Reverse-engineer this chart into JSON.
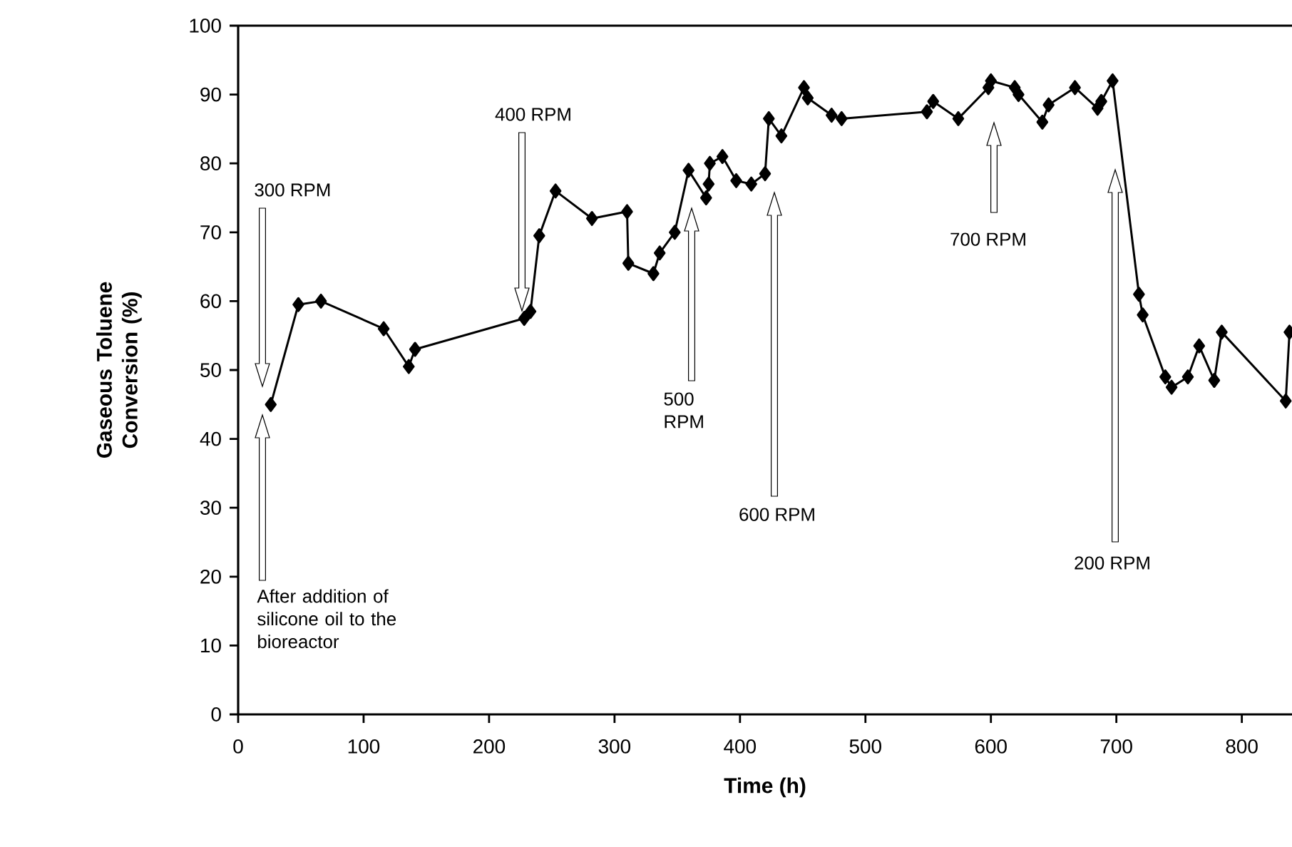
{
  "chart_data": {
    "type": "line",
    "xlabel": "Time (h)",
    "ylabel": "Gaseous Toluene Conversion (%)",
    "xlim": [
      0,
      840
    ],
    "xticks": [
      0,
      100,
      200,
      300,
      400,
      500,
      600,
      700,
      800
    ],
    "ylim": [
      0,
      100
    ],
    "yticks": [
      0,
      10,
      20,
      30,
      40,
      50,
      60,
      70,
      80,
      90,
      100
    ],
    "marker": "diamond",
    "line_style": "solid",
    "series": [
      {
        "color": "#000000",
        "x": [
          26,
          48,
          66,
          116,
          136,
          141,
          228,
          233,
          240,
          253,
          282,
          310,
          311,
          331,
          336,
          348,
          359,
          373,
          375,
          376,
          386,
          397,
          409,
          420,
          423,
          433,
          451,
          454,
          473,
          481,
          549,
          554,
          574,
          598,
          600,
          619,
          622,
          641,
          646,
          667,
          685,
          688,
          697,
          718,
          721,
          739,
          744,
          757,
          766,
          778,
          784,
          835,
          838
        ],
        "values": [
          45,
          59.5,
          60,
          56,
          50.5,
          53,
          57.5,
          58.5,
          69.5,
          76,
          72,
          73,
          65.5,
          64,
          67,
          70,
          79,
          75,
          77,
          80,
          81,
          77.5,
          77,
          78.5,
          86.5,
          84,
          91,
          89.5,
          87,
          86.5,
          87.5,
          89,
          86.5,
          91,
          92,
          91,
          90,
          86,
          88.5,
          91,
          88,
          89,
          92,
          61,
          58,
          49,
          47.5,
          49,
          53.5,
          48.5,
          55.5,
          45.5,
          55.5
        ]
      }
    ],
    "annotations": [
      "300 RPM",
      "After addition of silicone oil to the bioreactor",
      "400 RPM",
      "500 RPM",
      "600 RPM",
      "700 RPM",
      "200 RPM"
    ]
  }
}
